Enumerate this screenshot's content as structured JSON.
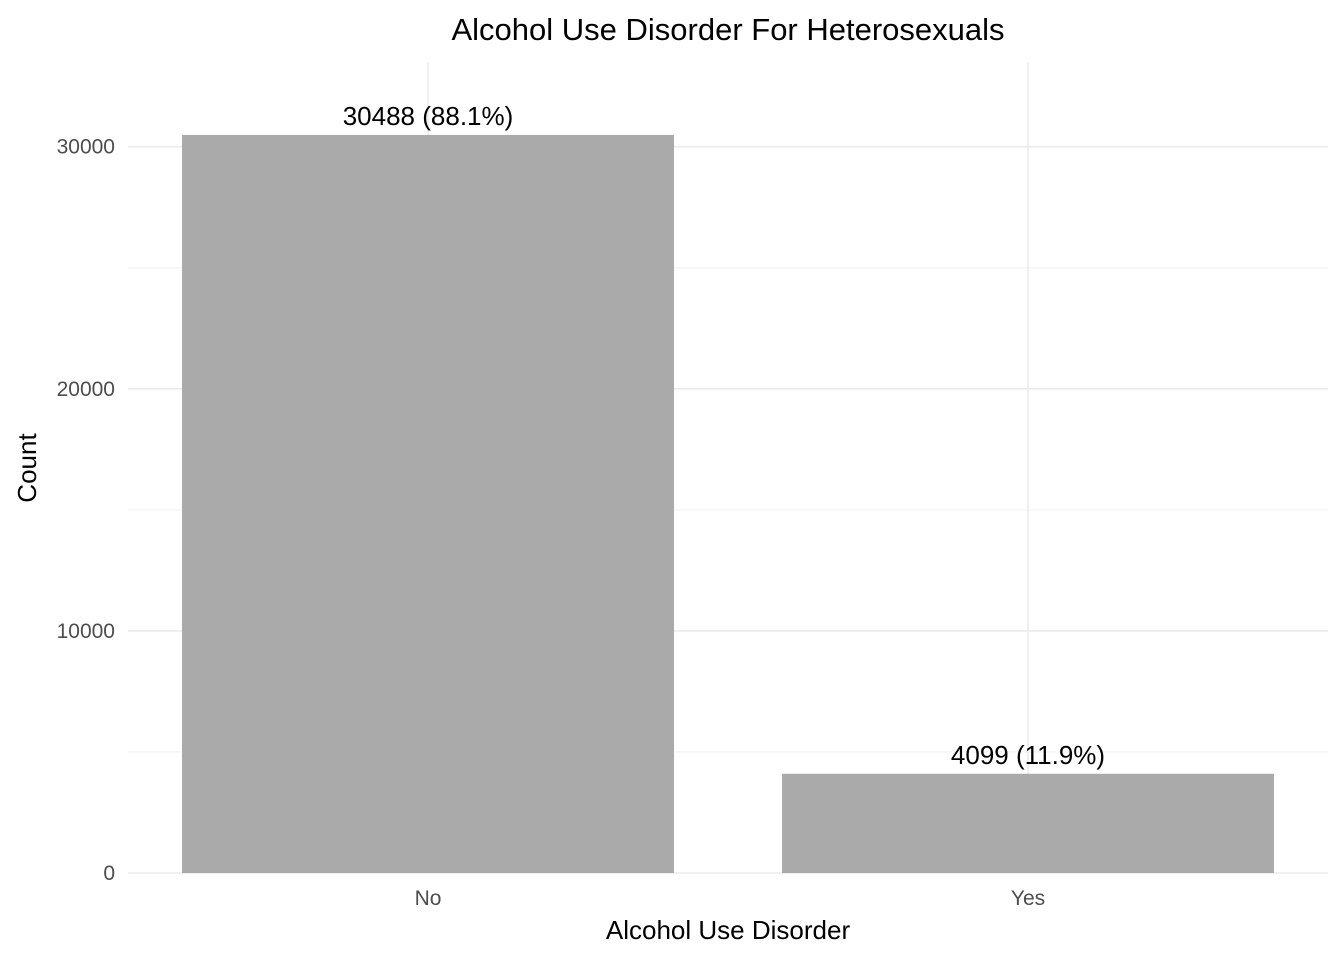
{
  "chart_data": {
    "type": "bar",
    "title": "Alcohol Use Disorder For Heterosexuals",
    "xlabel": "Alcohol Use Disorder",
    "ylabel": "Count",
    "categories": [
      "No",
      "Yes"
    ],
    "values": [
      30488,
      4099
    ],
    "data_labels": [
      "30488 (88.1%)",
      "4099 (11.9%)"
    ],
    "ylim": [
      0,
      33500
    ],
    "yticks": [
      0,
      10000,
      20000,
      30000
    ],
    "ytick_labels": [
      "0",
      "10000",
      "20000",
      "30000"
    ],
    "grid": true,
    "legend": "none",
    "bar_color": "#aaaaaa"
  }
}
